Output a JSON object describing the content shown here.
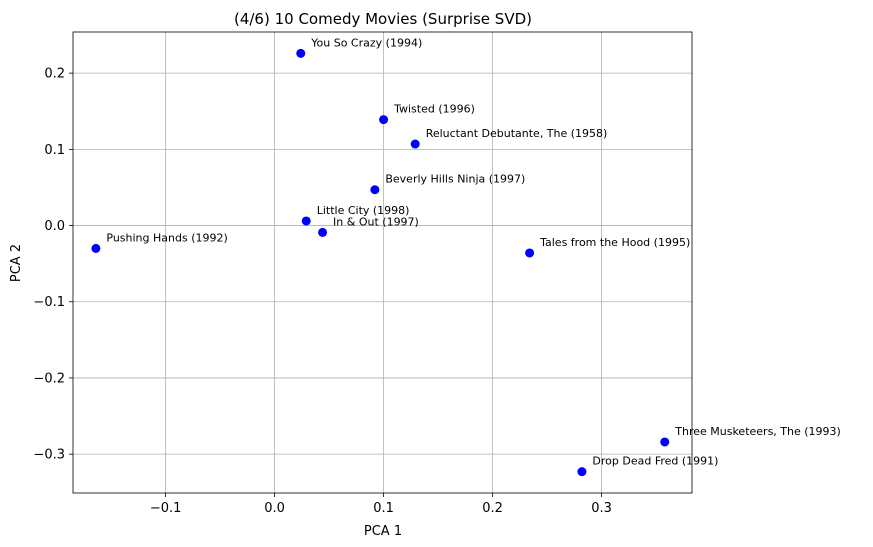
{
  "chart_data": {
    "type": "scatter",
    "title": "(4/6) 10 Comedy Movies (Surprise SVD)",
    "xlabel": "PCA 1",
    "ylabel": "PCA 2",
    "xlim": [
      -0.185,
      0.383
    ],
    "ylim": [
      -0.351,
      0.254
    ],
    "xticks": [
      -0.1,
      0.0,
      0.1,
      0.2,
      0.3
    ],
    "xtick_labels": [
      "−0.1",
      "0.0",
      "0.1",
      "0.2",
      "0.3"
    ],
    "yticks": [
      -0.3,
      -0.2,
      -0.1,
      0.0,
      0.1,
      0.2
    ],
    "ytick_labels": [
      "−0.3",
      "−0.2",
      "−0.1",
      "0.0",
      "0.1",
      "0.2"
    ],
    "grid": true,
    "point_color": "#0000ff",
    "points": [
      {
        "label": "You So Crazy (1994)",
        "x": 0.024,
        "y": 0.226
      },
      {
        "label": "Twisted (1996)",
        "x": 0.1,
        "y": 0.139
      },
      {
        "label": "Reluctant Debutante, The (1958)",
        "x": 0.129,
        "y": 0.107
      },
      {
        "label": "Beverly Hills Ninja (1997)",
        "x": 0.092,
        "y": 0.047
      },
      {
        "label": "Little City (1998)",
        "x": 0.029,
        "y": 0.006
      },
      {
        "label": "In & Out (1997)",
        "x": 0.044,
        "y": -0.009
      },
      {
        "label": "Pushing Hands (1992)",
        "x": -0.164,
        "y": -0.03
      },
      {
        "label": "Tales from the Hood (1995)",
        "x": 0.234,
        "y": -0.036
      },
      {
        "label": "Three Musketeers, The (1993)",
        "x": 0.358,
        "y": -0.284
      },
      {
        "label": "Drop Dead Fred (1991)",
        "x": 0.282,
        "y": -0.323
      }
    ]
  }
}
